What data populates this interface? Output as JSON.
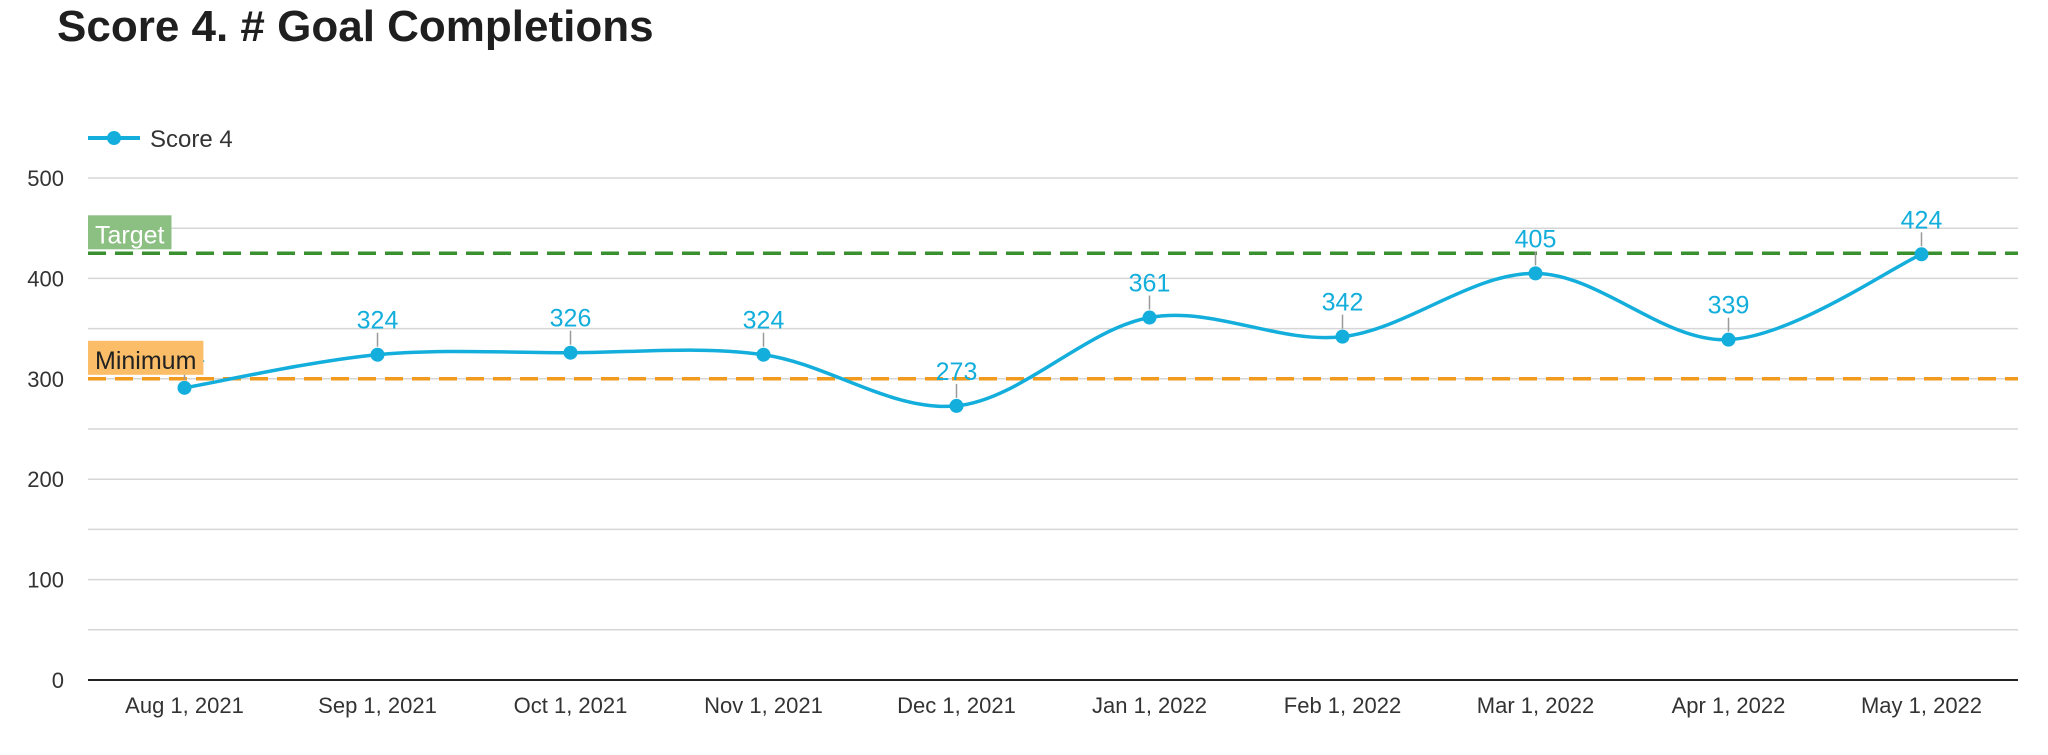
{
  "chart_data": {
    "type": "line",
    "title": "Score 4. # Goal Completions",
    "xlabel": "",
    "ylabel": "",
    "categories": [
      "Aug 1, 2021",
      "Sep 1, 2021",
      "Oct 1, 2021",
      "Nov 1, 2021",
      "Dec 1, 2021",
      "Jan 1, 2022",
      "Feb 1, 2022",
      "Mar 1, 2022",
      "Apr 1, 2022",
      "May 1, 2022"
    ],
    "series": [
      {
        "name": "Score 4",
        "values": [
          291,
          324,
          326,
          324,
          273,
          361,
          342,
          405,
          339,
          424
        ],
        "color": "#13aedb"
      }
    ],
    "ylim": [
      0,
      500
    ],
    "yticks": [
      0,
      100,
      200,
      300,
      400,
      500
    ],
    "grid": true,
    "legend": "top-left",
    "reference_lines": [
      {
        "label": "Target",
        "value": 425,
        "line_color": "#3a8f2f",
        "label_bg": "#8cc083",
        "label_color": "#ffffff"
      },
      {
        "label": "Minimum",
        "value": 300,
        "line_color": "#f19a1d",
        "label_bg": "#fbbd68",
        "label_color": "#222222"
      }
    ]
  }
}
